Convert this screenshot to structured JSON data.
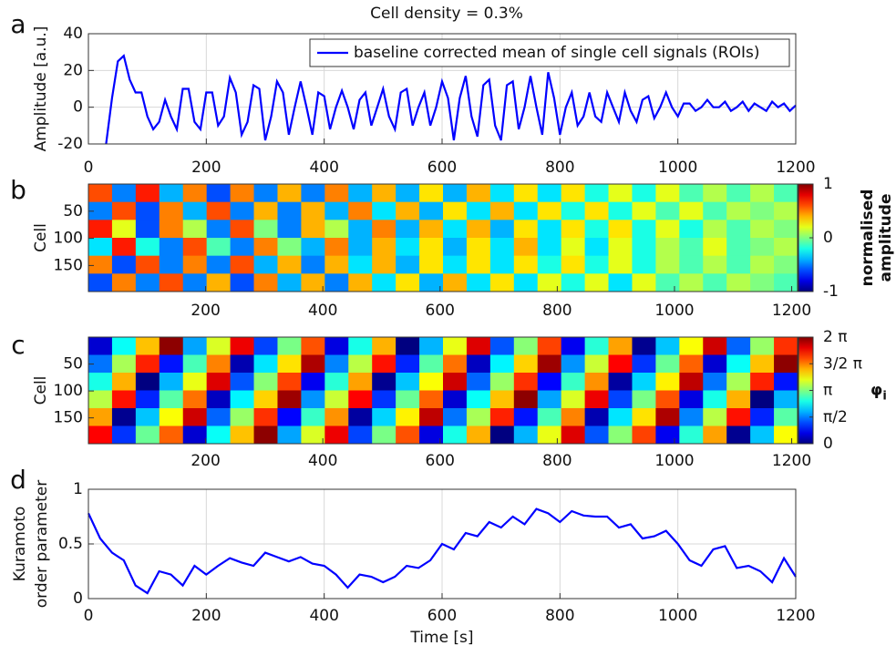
{
  "chart_data": [
    {
      "type": "line",
      "panel_label": "a",
      "title": "Cell density = 0.3%",
      "ylabel": "Amplitude [a.u.]",
      "xlim": [
        0,
        1200
      ],
      "xticks": [
        0,
        200,
        400,
        600,
        800,
        1000,
        1200
      ],
      "ylim": [
        -20,
        40
      ],
      "yticks": [
        -20,
        0,
        20,
        40
      ],
      "grid": true,
      "legend": "top-right",
      "x": [
        30,
        40,
        50,
        60,
        70,
        80,
        90,
        100,
        110,
        120,
        130,
        140,
        150,
        160,
        170,
        180,
        190,
        200,
        210,
        220,
        230,
        240,
        250,
        260,
        270,
        280,
        290,
        300,
        310,
        320,
        330,
        340,
        350,
        360,
        370,
        380,
        390,
        400,
        410,
        420,
        430,
        440,
        450,
        460,
        470,
        480,
        490,
        500,
        510,
        520,
        530,
        540,
        550,
        560,
        570,
        580,
        590,
        600,
        610,
        620,
        630,
        640,
        650,
        660,
        670,
        680,
        690,
        700,
        710,
        720,
        730,
        740,
        750,
        760,
        770,
        780,
        790,
        800,
        810,
        820,
        830,
        840,
        850,
        860,
        870,
        880,
        890,
        900,
        910,
        920,
        930,
        940,
        950,
        960,
        970,
        980,
        990,
        1000,
        1010,
        1020,
        1030,
        1040,
        1050,
        1060,
        1070,
        1080,
        1090,
        1100,
        1110,
        1120,
        1130,
        1140,
        1150,
        1160,
        1170,
        1180,
        1190,
        1200
      ],
      "series": [
        {
          "name": "baseline corrected mean of single cell signals (ROIs)",
          "color": "#0000ff",
          "values": [
            -20,
            5,
            25,
            28,
            15,
            8,
            8,
            -5,
            -12,
            -8,
            4,
            -5,
            -12,
            10,
            10,
            -8,
            -12,
            8,
            8,
            -10,
            -5,
            16,
            8,
            -15,
            -8,
            12,
            10,
            -18,
            -5,
            14,
            8,
            -15,
            0,
            14,
            0,
            -15,
            8,
            6,
            -12,
            0,
            9,
            0,
            -12,
            4,
            8,
            -10,
            0,
            10,
            -5,
            -12,
            8,
            10,
            -10,
            0,
            8,
            -10,
            0,
            14,
            5,
            -18,
            5,
            17,
            -5,
            -16,
            12,
            15,
            -10,
            -18,
            12,
            14,
            -12,
            0,
            17,
            0,
            -15,
            19,
            5,
            -15,
            0,
            8,
            -10,
            -5,
            8,
            -5,
            -8,
            8,
            0,
            -8,
            8,
            -2,
            -8,
            4,
            6,
            -6,
            0,
            8,
            0,
            -5,
            2,
            2,
            -2,
            0,
            4,
            0,
            0,
            3,
            -2,
            0,
            3,
            -2,
            2,
            0,
            -2,
            3,
            0,
            2,
            -2,
            1
          ]
        }
      ]
    },
    {
      "type": "heatmap",
      "panel_label": "b",
      "ylabel": "Cell",
      "xlim": [
        0,
        1210
      ],
      "xticks": [
        200,
        400,
        600,
        800,
        1000,
        1200
      ],
      "ylim": [
        0,
        198
      ],
      "yticks": [
        50,
        100,
        150
      ],
      "y_reversed": true,
      "zlim": [
        -1,
        1
      ],
      "zticks": [
        -1,
        0,
        1
      ],
      "colorbar_label": [
        "normalised",
        "amplitude"
      ],
      "z": [
        [
          0.6,
          -0.5,
          0.7,
          -0.4,
          0.5,
          -0.6,
          0.5,
          -0.5,
          0.4,
          -0.5,
          0.5,
          -0.4,
          0.4,
          -0.4,
          0.3,
          -0.4,
          0.4,
          -0.3,
          0.3,
          -0.3,
          0.3,
          -0.2,
          0.2,
          -0.2,
          0.2,
          -0.1,
          0.1,
          -0.1,
          0.1,
          -0.1
        ],
        [
          -0.5,
          0.6,
          -0.6,
          0.5,
          -0.4,
          0.6,
          -0.5,
          0.4,
          -0.5,
          0.4,
          -0.4,
          0.5,
          -0.3,
          0.4,
          -0.4,
          0.3,
          -0.3,
          0.4,
          -0.3,
          0.3,
          -0.2,
          0.3,
          -0.2,
          0.2,
          -0.1,
          0.2,
          -0.1,
          0.1,
          0,
          0.1
        ],
        [
          0.7,
          0.2,
          -0.6,
          0.5,
          0.1,
          -0.5,
          0.6,
          0,
          -0.5,
          0.4,
          0.1,
          -0.4,
          0.5,
          -0.4,
          0.4,
          -0.3,
          0.4,
          -0.4,
          0.3,
          -0.3,
          0.3,
          -0.2,
          0.3,
          -0.2,
          0.2,
          -0.2,
          0.1,
          -0.1,
          0.1,
          0
        ],
        [
          -0.3,
          0.7,
          -0.2,
          -0.5,
          0.6,
          -0.1,
          -0.5,
          0.5,
          0,
          -0.4,
          0.5,
          -0.4,
          0.4,
          -0.3,
          0.3,
          -0.4,
          0.3,
          -0.3,
          0.4,
          -0.3,
          0.2,
          -0.3,
          0.2,
          -0.2,
          0.1,
          -0.1,
          0.2,
          -0.1,
          0,
          0.1
        ],
        [
          0.5,
          -0.6,
          0.6,
          -0.5,
          0.5,
          -0.5,
          0.6,
          -0.4,
          0.4,
          -0.5,
          0.4,
          -0.3,
          0.4,
          -0.4,
          0.3,
          -0.3,
          0.3,
          -0.3,
          0.3,
          -0.2,
          0.3,
          -0.2,
          0.2,
          -0.2,
          0.1,
          -0.1,
          0.1,
          -0.1,
          0.1,
          0
        ],
        [
          -0.6,
          0.5,
          -0.5,
          0.6,
          -0.5,
          0.4,
          -0.6,
          0.5,
          -0.4,
          0.4,
          -0.5,
          0.4,
          -0.3,
          0.3,
          -0.4,
          0.4,
          -0.3,
          0.3,
          -0.3,
          0.2,
          -0.2,
          0.2,
          -0.3,
          0.2,
          -0.1,
          0.1,
          -0.1,
          0.1,
          0,
          -0.1
        ]
      ]
    },
    {
      "type": "heatmap",
      "panel_label": "c",
      "ylabel": "Cell",
      "xlim": [
        0,
        1210
      ],
      "xticks": [
        200,
        400,
        600,
        800,
        1000,
        1200
      ],
      "ylim": [
        0,
        198
      ],
      "yticks": [
        50,
        100,
        150
      ],
      "y_reversed": true,
      "zlim": [
        0,
        6.2832
      ],
      "zticks": [
        0,
        {
          "value": 1.5708,
          "label": "π/2"
        },
        {
          "value": 3.1416,
          "label": "π"
        },
        {
          "value": 4.7124,
          "label": "3/2 π"
        },
        {
          "value": 6.2832,
          "label": "2 π"
        }
      ],
      "colorbar_label": "φ",
      "colorbar_label_sub": "i",
      "z": [
        [
          0.5,
          2.4,
          4.3,
          6.2,
          1.8,
          3.7,
          5.6,
          1.2,
          3.1,
          5.0,
          0.6,
          2.5,
          4.4,
          0.0,
          1.9,
          3.8,
          5.7,
          1.3,
          3.2,
          5.1,
          0.7,
          2.6,
          4.5,
          0.1,
          2.0,
          3.9,
          5.8,
          1.4,
          3.3,
          5.2
        ],
        [
          1.5,
          3.4,
          5.3,
          0.9,
          2.8,
          4.7,
          0.3,
          2.2,
          4.1,
          6.0,
          1.6,
          3.5,
          5.4,
          1.0,
          2.9,
          4.8,
          0.4,
          2.3,
          4.2,
          6.1,
          1.7,
          3.6,
          5.5,
          1.1,
          3.0,
          4.9,
          0.5,
          2.4,
          4.3,
          6.2
        ],
        [
          2.5,
          4.4,
          0.0,
          1.9,
          3.8,
          5.7,
          1.3,
          3.2,
          5.1,
          0.7,
          2.6,
          4.5,
          0.1,
          2.0,
          3.9,
          5.8,
          1.4,
          3.3,
          5.2,
          0.8,
          2.7,
          4.6,
          0.2,
          2.1,
          4.0,
          5.9,
          1.5,
          3.4,
          5.3,
          0.9
        ],
        [
          3.5,
          5.4,
          1.0,
          2.9,
          4.8,
          0.4,
          2.3,
          4.2,
          6.1,
          1.7,
          3.6,
          5.5,
          1.1,
          3.0,
          4.9,
          0.5,
          2.4,
          4.3,
          6.2,
          1.8,
          3.7,
          5.6,
          1.2,
          3.1,
          5.0,
          0.6,
          2.5,
          4.4,
          0.0,
          1.9
        ],
        [
          4.5,
          0.1,
          2.0,
          3.9,
          5.8,
          1.4,
          3.3,
          5.2,
          0.8,
          2.7,
          4.6,
          0.2,
          2.1,
          4.0,
          5.9,
          1.5,
          3.4,
          5.3,
          0.9,
          2.8,
          4.7,
          0.3,
          2.2,
          4.1,
          6.0,
          1.6,
          3.5,
          5.4,
          1.0,
          2.9
        ],
        [
          5.5,
          1.1,
          3.0,
          4.9,
          0.5,
          2.4,
          4.3,
          6.2,
          1.8,
          3.7,
          5.6,
          1.2,
          3.1,
          5.0,
          0.6,
          2.5,
          4.4,
          0.0,
          1.9,
          3.8,
          5.7,
          1.3,
          3.2,
          5.1,
          0.7,
          2.6,
          4.5,
          0.1,
          2.0,
          3.9
        ]
      ]
    },
    {
      "type": "line",
      "panel_label": "d",
      "ylabel": [
        "Kuramoto",
        "order parameter"
      ],
      "xlabel": "Time [s]",
      "xlim": [
        0,
        1200
      ],
      "xticks": [
        0,
        200,
        400,
        600,
        800,
        1000,
        1200
      ],
      "ylim": [
        0,
        1
      ],
      "yticks": [
        0,
        0.5,
        1
      ],
      "grid": true,
      "color": "#0000ff",
      "x": [
        0,
        20,
        40,
        60,
        80,
        100,
        120,
        140,
        160,
        180,
        200,
        220,
        240,
        260,
        280,
        300,
        320,
        340,
        360,
        380,
        400,
        420,
        440,
        460,
        480,
        500,
        520,
        540,
        560,
        580,
        600,
        620,
        640,
        660,
        680,
        700,
        720,
        740,
        760,
        780,
        800,
        820,
        840,
        860,
        880,
        900,
        920,
        940,
        960,
        980,
        1000,
        1020,
        1040,
        1060,
        1080,
        1100,
        1120,
        1140,
        1160,
        1180,
        1200
      ],
      "values": [
        0.78,
        0.55,
        0.42,
        0.35,
        0.12,
        0.05,
        0.25,
        0.22,
        0.12,
        0.3,
        0.22,
        0.3,
        0.37,
        0.33,
        0.3,
        0.42,
        0.38,
        0.34,
        0.38,
        0.32,
        0.3,
        0.22,
        0.1,
        0.22,
        0.2,
        0.15,
        0.2,
        0.3,
        0.28,
        0.35,
        0.5,
        0.45,
        0.6,
        0.57,
        0.7,
        0.65,
        0.75,
        0.68,
        0.82,
        0.78,
        0.7,
        0.8,
        0.76,
        0.75,
        0.75,
        0.65,
        0.68,
        0.55,
        0.57,
        0.62,
        0.5,
        0.35,
        0.3,
        0.45,
        0.48,
        0.28,
        0.3,
        0.25,
        0.15,
        0.37,
        0.2
      ]
    }
  ]
}
